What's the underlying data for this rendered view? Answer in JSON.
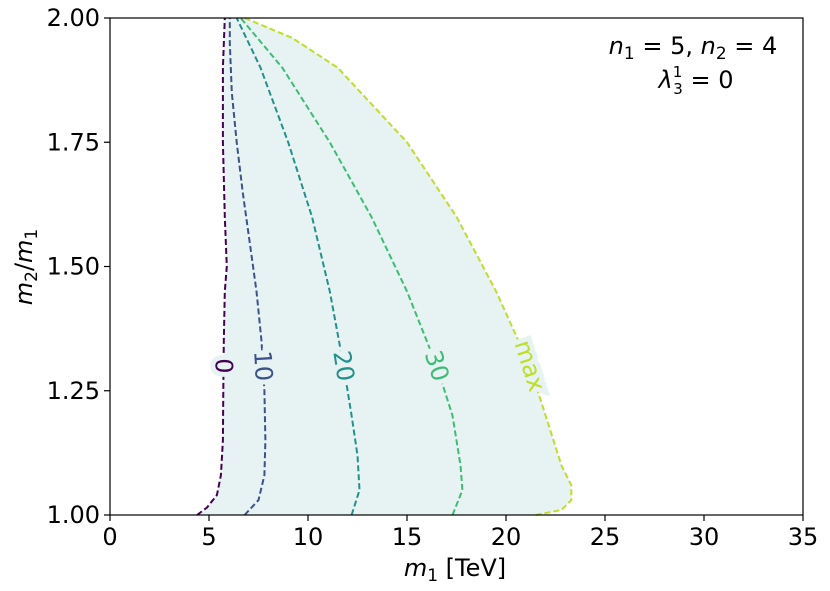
{
  "chart_data": {
    "type": "line",
    "title": "",
    "xlabel": {
      "var": "m",
      "sub": "1",
      "unit": " [TeV]"
    },
    "ylabel": {
      "num": "m",
      "num_sub": "2",
      "slash": "/",
      "den": "m",
      "den_sub": "1"
    },
    "xlim": [
      0,
      35
    ],
    "ylim": [
      1.0,
      2.0
    ],
    "x_ticks": [
      0,
      5,
      10,
      15,
      20,
      25,
      30,
      35
    ],
    "x_tick_labels": [
      "0",
      "5",
      "10",
      "15",
      "20",
      "25",
      "30",
      "35"
    ],
    "y_ticks": [
      1.0,
      1.25,
      1.5,
      1.75,
      2.0
    ],
    "y_tick_labels": [
      "1.00",
      "1.25",
      "1.50",
      "1.75",
      "2.00"
    ],
    "grid": false,
    "annotation": {
      "line1": {
        "a": "n",
        "a_sub": "1",
        "a_val": " = 5, ",
        "b": "n",
        "b_sub": "2",
        "b_val": " = 4"
      },
      "line2": {
        "sym": "λ",
        "sub": "3",
        "sup": "1",
        "val": " = 0"
      },
      "placement": "top-right"
    },
    "fill_color": "#e6f3f2",
    "series": [
      {
        "label": "0",
        "color": "#440154",
        "label_at": 1.3,
        "points": [
          [
            4.4,
            1.0
          ],
          [
            4.9,
            1.015
          ],
          [
            5.4,
            1.04
          ],
          [
            5.6,
            1.08
          ],
          [
            5.7,
            1.15
          ],
          [
            5.72,
            1.25
          ],
          [
            5.75,
            1.35
          ],
          [
            5.8,
            1.45
          ],
          [
            5.9,
            1.5
          ],
          [
            5.8,
            1.6
          ],
          [
            5.7,
            1.75
          ],
          [
            5.7,
            1.9
          ],
          [
            5.8,
            2.0
          ]
        ]
      },
      {
        "label": "10",
        "color": "#3b528b",
        "label_at": 1.3,
        "points": [
          [
            6.8,
            1.0
          ],
          [
            7.5,
            1.03
          ],
          [
            7.8,
            1.08
          ],
          [
            7.85,
            1.15
          ],
          [
            7.8,
            1.25
          ],
          [
            7.65,
            1.35
          ],
          [
            7.4,
            1.45
          ],
          [
            7.05,
            1.55
          ],
          [
            6.7,
            1.65
          ],
          [
            6.4,
            1.75
          ],
          [
            6.15,
            1.85
          ],
          [
            6.05,
            1.95
          ],
          [
            6.05,
            2.0
          ]
        ]
      },
      {
        "label": "20",
        "color": "#21918c",
        "label_at": 1.3,
        "points": [
          [
            12.2,
            1.0
          ],
          [
            12.6,
            1.05
          ],
          [
            12.5,
            1.12
          ],
          [
            12.2,
            1.2
          ],
          [
            11.8,
            1.3
          ],
          [
            11.1,
            1.45
          ],
          [
            10.2,
            1.6
          ],
          [
            9.0,
            1.75
          ],
          [
            7.6,
            1.9
          ],
          [
            6.4,
            2.0
          ]
        ]
      },
      {
        "label": "30",
        "color": "#3dbc74",
        "label_at": 1.3,
        "points": [
          [
            17.3,
            1.0
          ],
          [
            17.8,
            1.05
          ],
          [
            17.7,
            1.1
          ],
          [
            17.3,
            1.2
          ],
          [
            16.5,
            1.3
          ],
          [
            15.0,
            1.45
          ],
          [
            13.2,
            1.6
          ],
          [
            11.1,
            1.75
          ],
          [
            8.7,
            1.9
          ],
          [
            6.6,
            2.0
          ]
        ]
      },
      {
        "label": "max",
        "color": "#bddf26",
        "label_at": 1.3,
        "points": [
          [
            21.5,
            1.0
          ],
          [
            22.8,
            1.01
          ],
          [
            23.3,
            1.03
          ],
          [
            23.3,
            1.06
          ],
          [
            22.8,
            1.1
          ],
          [
            22.0,
            1.2
          ],
          [
            21.2,
            1.3
          ],
          [
            19.5,
            1.45
          ],
          [
            17.5,
            1.6
          ],
          [
            15.0,
            1.75
          ],
          [
            11.5,
            1.9
          ],
          [
            9.2,
            1.96
          ],
          [
            6.8,
            2.0
          ]
        ]
      }
    ]
  }
}
